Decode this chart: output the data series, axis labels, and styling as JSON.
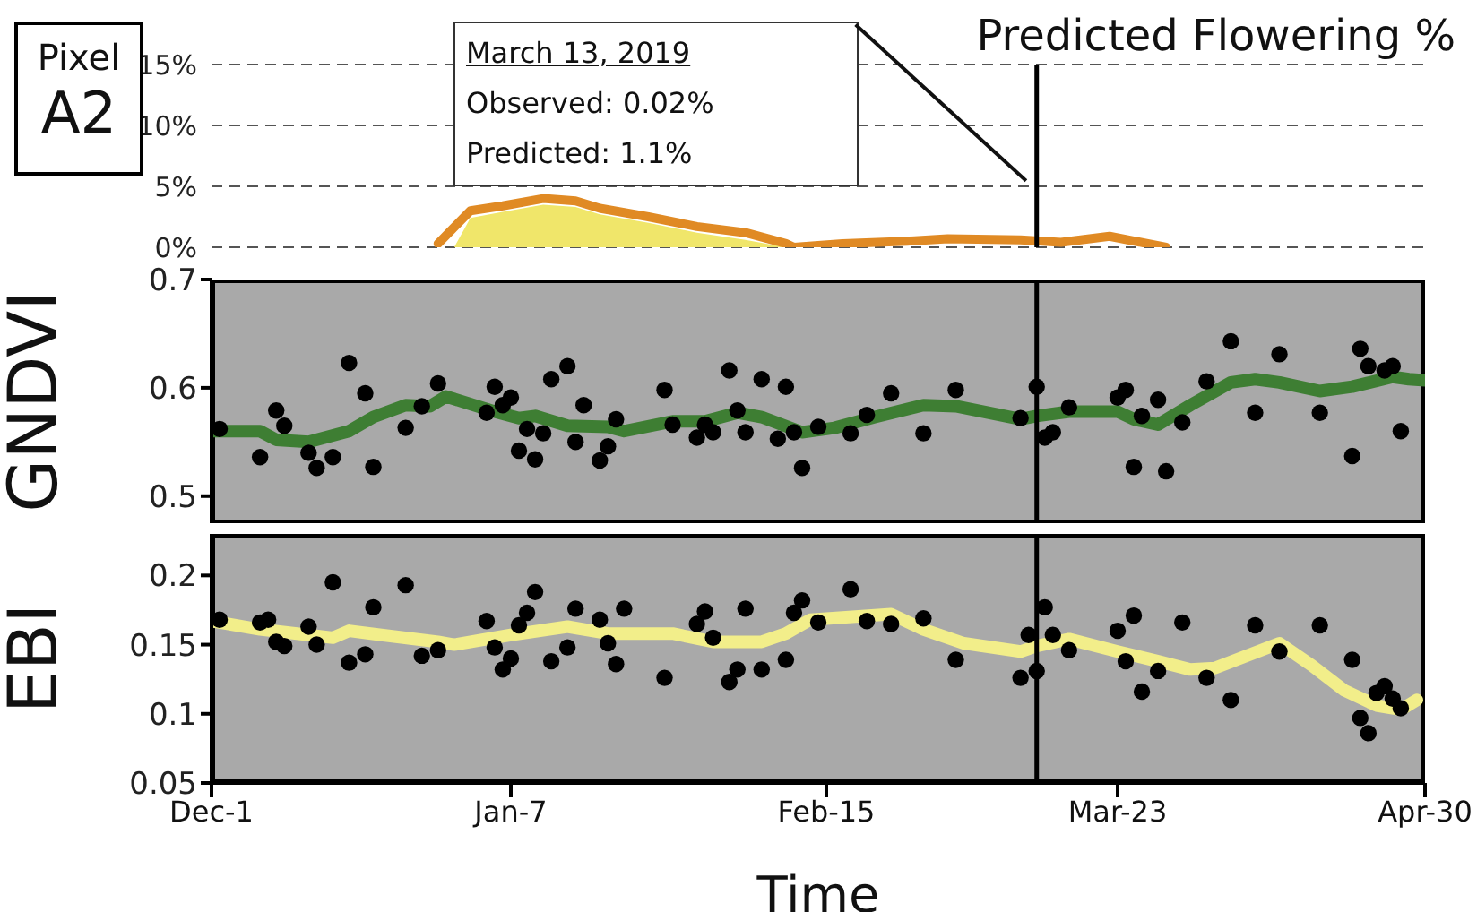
{
  "chart_data": [
    {
      "type": "line",
      "title": "Predicted Flowering %",
      "xlim": [
        "2018-12-01",
        "2019-04-30"
      ],
      "ylim": [
        0,
        15
      ],
      "yticks": [
        {
          "value": 0,
          "label": "0%"
        },
        {
          "value": 5,
          "label": "5%"
        },
        {
          "value": 10,
          "label": "10%"
        },
        {
          "value": 15,
          "label": "15%"
        }
      ],
      "grid": "y",
      "tick_labels": "y",
      "annotations": [
        "Pixel",
        "A2",
        "March 13, 2019",
        "Observed: 0.02%",
        "Predicted: 1.1%"
      ],
      "ref_lines": [
        {
          "axis": "x",
          "value": "2019-03-13",
          "color": "#000000"
        }
      ],
      "series": [
        {
          "type": "area",
          "color": "#f0e66a",
          "x": [
            "2018-12-31",
            "2019-01-02",
            "2019-01-06",
            "2019-01-11",
            "2019-01-15",
            "2019-01-18",
            "2019-01-24",
            "2019-01-30",
            "2019-02-05",
            "2019-02-10"
          ],
          "values": [
            0,
            2.4,
            2.9,
            3.5,
            3.3,
            2.7,
            2.0,
            1.2,
            0.6,
            0
          ]
        },
        {
          "color": "#e08a24",
          "x": [
            "2018-12-29",
            "2019-01-02",
            "2019-01-06",
            "2019-01-11",
            "2019-01-15",
            "2019-01-18",
            "2019-01-24",
            "2019-01-30",
            "2019-02-05",
            "2019-02-10",
            "2019-02-11",
            "2019-02-17",
            "2019-02-25",
            "2019-03-02",
            "2019-03-11",
            "2019-03-16",
            "2019-03-22",
            "2019-03-29"
          ],
          "values": [
            0.3,
            3.0,
            3.4,
            4.0,
            3.8,
            3.2,
            2.5,
            1.7,
            1.2,
            0.3,
            0,
            0.3,
            0.5,
            0.7,
            0.6,
            0.4,
            0.9,
            0
          ]
        }
      ]
    },
    {
      "type": "scatter",
      "ylabel": "GNDVI",
      "xlim": [
        "2018-12-01",
        "2019-04-30"
      ],
      "ylim": [
        0.475,
        0.7
      ],
      "yticks": [
        0.5,
        0.6,
        0.7
      ],
      "tick_labels": "y",
      "ref_lines": [
        {
          "axis": "x",
          "value": "2019-03-13",
          "color": "#000000"
        }
      ],
      "series": [
        {
          "color": "#000000",
          "marker": "circle",
          "x": [
            "2018-12-02",
            "2018-12-07",
            "2018-12-09",
            "2018-12-10",
            "2018-12-13",
            "2018-12-14",
            "2018-12-16",
            "2018-12-18",
            "2018-12-20",
            "2018-12-21",
            "2018-12-25",
            "2018-12-27",
            "2018-12-29",
            "2019-01-04",
            "2019-01-05",
            "2019-01-06",
            "2019-01-07",
            "2019-01-08",
            "2019-01-09",
            "2019-01-10",
            "2019-01-11",
            "2019-01-12",
            "2019-01-14",
            "2019-01-15",
            "2019-01-16",
            "2019-01-18",
            "2019-01-19",
            "2019-01-20",
            "2019-01-26",
            "2019-01-27",
            "2019-01-30",
            "2019-01-31",
            "2019-02-01",
            "2019-02-03",
            "2019-02-04",
            "2019-02-05",
            "2019-02-07",
            "2019-02-09",
            "2019-02-10",
            "2019-02-11",
            "2019-02-12",
            "2019-02-14",
            "2019-02-18",
            "2019-02-20",
            "2019-02-23",
            "2019-02-27",
            "2019-03-03",
            "2019-03-11",
            "2019-03-13",
            "2019-03-14",
            "2019-03-15",
            "2019-03-17",
            "2019-03-23",
            "2019-03-24",
            "2019-03-25",
            "2019-03-26",
            "2019-03-28",
            "2019-03-29",
            "2019-03-31",
            "2019-04-03",
            "2019-04-06",
            "2019-04-09",
            "2019-04-12",
            "2019-04-17",
            "2019-04-21",
            "2019-04-22",
            "2019-04-23",
            "2019-04-25",
            "2019-04-26",
            "2019-04-27"
          ],
          "values": [
            0.562,
            0.536,
            0.579,
            0.565,
            0.54,
            0.526,
            0.536,
            0.623,
            0.595,
            0.527,
            0.563,
            0.583,
            0.604,
            0.577,
            0.601,
            0.584,
            0.591,
            0.542,
            0.562,
            0.534,
            0.558,
            0.608,
            0.62,
            0.55,
            0.584,
            0.533,
            0.546,
            0.571,
            0.598,
            0.566,
            0.554,
            0.566,
            0.559,
            0.616,
            0.579,
            0.559,
            0.608,
            0.553,
            0.601,
            0.559,
            0.526,
            0.564,
            0.558,
            0.575,
            0.595,
            0.558,
            0.598,
            0.572,
            0.601,
            0.554,
            0.559,
            0.582,
            0.591,
            0.598,
            0.527,
            0.574,
            0.589,
            0.523,
            0.568,
            0.606,
            0.643,
            0.577,
            0.631,
            0.577,
            0.537,
            0.636,
            0.62,
            0.616,
            0.62,
            0.56
          ]
        },
        {
          "type": "line",
          "color": "#3e7e33",
          "x": [
            "2018-12-01",
            "2018-12-07",
            "2018-12-09",
            "2018-12-13",
            "2018-12-18",
            "2018-12-21",
            "2018-12-25",
            "2018-12-28",
            "2018-12-30",
            "2019-01-05",
            "2019-01-08",
            "2019-01-10",
            "2019-01-14",
            "2019-01-19",
            "2019-01-21",
            "2019-01-27",
            "2019-01-31",
            "2019-02-04",
            "2019-02-07",
            "2019-02-12",
            "2019-02-16",
            "2019-02-21",
            "2019-02-27",
            "2019-03-03",
            "2019-03-11",
            "2019-03-13",
            "2019-03-17",
            "2019-03-23",
            "2019-03-25",
            "2019-03-28",
            "2019-04-01",
            "2019-04-06",
            "2019-04-09",
            "2019-04-12",
            "2019-04-17",
            "2019-04-21",
            "2019-04-26",
            "2019-04-28",
            "2019-04-30"
          ],
          "values": [
            0.56,
            0.56,
            0.552,
            0.55,
            0.56,
            0.573,
            0.584,
            0.583,
            0.592,
            0.578,
            0.572,
            0.574,
            0.565,
            0.564,
            0.56,
            0.569,
            0.569,
            0.577,
            0.573,
            0.559,
            0.563,
            0.573,
            0.584,
            0.583,
            0.571,
            0.574,
            0.578,
            0.578,
            0.571,
            0.566,
            0.584,
            0.605,
            0.608,
            0.605,
            0.597,
            0.601,
            0.61,
            0.608,
            0.607
          ]
        }
      ]
    },
    {
      "type": "scatter",
      "ylabel": "EBI",
      "xlabel": "Time",
      "xlim": [
        "2018-12-01",
        "2019-04-30"
      ],
      "xticks": [
        {
          "value": "2018-12-01",
          "label": "Dec-1"
        },
        {
          "value": "2019-01-07",
          "label": "Jan-7"
        },
        {
          "value": "2019-02-15",
          "label": "Feb-15"
        },
        {
          "value": "2019-03-23",
          "label": "Mar-23"
        },
        {
          "value": "2019-04-30",
          "label": "Apr-30"
        }
      ],
      "ylim": [
        0.05,
        0.23
      ],
      "yticks": [
        0.05,
        0.1,
        0.15,
        0.2
      ],
      "ref_lines": [
        {
          "axis": "x",
          "value": "2019-03-13",
          "color": "#000000"
        }
      ],
      "series": [
        {
          "color": "#000000",
          "marker": "circle",
          "x": [
            "2018-12-02",
            "2018-12-07",
            "2018-12-08",
            "2018-12-09",
            "2018-12-10",
            "2018-12-13",
            "2018-12-14",
            "2018-12-16",
            "2018-12-18",
            "2018-12-20",
            "2018-12-21",
            "2018-12-25",
            "2018-12-27",
            "2018-12-29",
            "2019-01-04",
            "2019-01-05",
            "2019-01-06",
            "2019-01-07",
            "2019-01-08",
            "2019-01-09",
            "2019-01-10",
            "2019-01-12",
            "2019-01-14",
            "2019-01-15",
            "2019-01-18",
            "2019-01-19",
            "2019-01-20",
            "2019-01-21",
            "2019-01-26",
            "2019-01-30",
            "2019-01-31",
            "2019-02-01",
            "2019-02-03",
            "2019-02-04",
            "2019-02-05",
            "2019-02-07",
            "2019-02-10",
            "2019-02-11",
            "2019-02-12",
            "2019-02-14",
            "2019-02-18",
            "2019-02-20",
            "2019-02-23",
            "2019-02-27",
            "2019-03-03",
            "2019-03-11",
            "2019-03-12",
            "2019-03-13",
            "2019-03-14",
            "2019-03-15",
            "2019-03-17",
            "2019-03-23",
            "2019-03-24",
            "2019-03-25",
            "2019-03-26",
            "2019-03-28",
            "2019-03-31",
            "2019-04-03",
            "2019-04-06",
            "2019-04-09",
            "2019-04-12",
            "2019-04-17",
            "2019-04-21",
            "2019-04-22",
            "2019-04-23",
            "2019-04-24",
            "2019-04-25",
            "2019-04-26",
            "2019-04-27"
          ],
          "values": [
            0.168,
            0.166,
            0.168,
            0.152,
            0.149,
            0.163,
            0.15,
            0.195,
            0.137,
            0.143,
            0.177,
            0.193,
            0.142,
            0.146,
            0.167,
            0.148,
            0.132,
            0.14,
            0.164,
            0.173,
            0.188,
            0.138,
            0.148,
            0.176,
            0.168,
            0.151,
            0.136,
            0.176,
            0.126,
            0.165,
            0.174,
            0.155,
            0.123,
            0.132,
            0.176,
            0.132,
            0.139,
            0.173,
            0.182,
            0.166,
            0.19,
            0.167,
            0.165,
            0.169,
            0.139,
            0.126,
            0.157,
            0.131,
            0.177,
            0.157,
            0.146,
            0.16,
            0.138,
            0.171,
            0.116,
            0.131,
            0.166,
            0.126,
            0.11,
            0.164,
            0.145,
            0.164,
            0.139,
            0.097,
            0.086,
            0.115,
            0.12,
            0.111,
            0.104
          ]
        },
        {
          "type": "line",
          "color": "#f2ee8a",
          "x": [
            "2018-12-01",
            "2018-12-07",
            "2018-12-13",
            "2018-12-16",
            "2018-12-18",
            "2018-12-22",
            "2018-12-29",
            "2018-12-31",
            "2019-01-07",
            "2019-01-14",
            "2019-01-19",
            "2019-01-27",
            "2019-02-01",
            "2019-02-07",
            "2019-02-10",
            "2019-02-13",
            "2019-02-23",
            "2019-02-27",
            "2019-03-04",
            "2019-03-11",
            "2019-03-13",
            "2019-03-17",
            "2019-03-23",
            "2019-03-28",
            "2019-04-01",
            "2019-04-04",
            "2019-04-12",
            "2019-04-16",
            "2019-04-20",
            "2019-04-24",
            "2019-04-27",
            "2019-04-29"
          ],
          "values": [
            0.167,
            0.161,
            0.157,
            0.155,
            0.16,
            0.157,
            0.152,
            0.15,
            0.157,
            0.163,
            0.158,
            0.158,
            0.152,
            0.152,
            0.158,
            0.168,
            0.172,
            0.161,
            0.151,
            0.145,
            0.149,
            0.154,
            0.145,
            0.138,
            0.132,
            0.133,
            0.151,
            0.135,
            0.117,
            0.106,
            0.103,
            0.11
          ]
        }
      ]
    }
  ]
}
